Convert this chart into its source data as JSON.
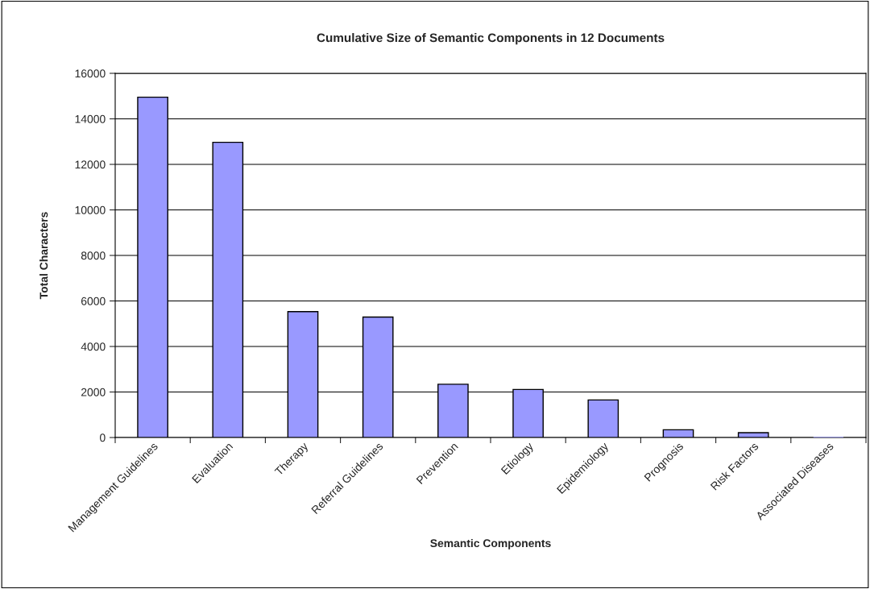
{
  "chart_data": {
    "type": "bar",
    "title": "Cumulative Size of Semantic Components in 12 Documents",
    "xlabel": "Semantic Components",
    "ylabel": "Total Characters",
    "categories": [
      "Management Guidelines",
      "Evaluation",
      "Therapy",
      "Referral Guidelines",
      "Prevention",
      "Etiology",
      "Epidemiology",
      "Prognosis",
      "Risk Factors",
      "Associated Diseases"
    ],
    "values": [
      14950,
      12970,
      5530,
      5290,
      2340,
      2110,
      1650,
      340,
      210,
      0
    ],
    "color": "#9999ff",
    "ylim": [
      0,
      16000
    ],
    "yticks": [
      0,
      2000,
      4000,
      6000,
      8000,
      10000,
      12000,
      14000,
      16000
    ],
    "grid": "y"
  }
}
